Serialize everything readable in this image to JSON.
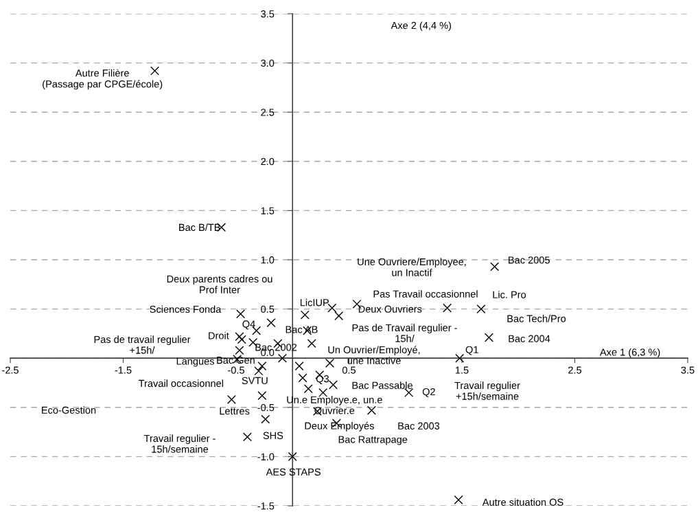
{
  "chart_data": {
    "type": "scatter",
    "xlabel": "Axe 1 (6,3 %)",
    "ylabel": "Axe 2 (4,4 %)",
    "xlim": [
      -2.5,
      3.5
    ],
    "ylim": [
      -1.5,
      3.5
    ],
    "xticks": [
      -2.5,
      -1.5,
      -0.5,
      0.5,
      1.5,
      2.5,
      3.5
    ],
    "yticks": [
      {
        "value": -1.5,
        "label": "-1.5"
      },
      {
        "value": -1.0,
        "label": "-1.0"
      },
      {
        "value": -0.5,
        "label": "-0.5"
      },
      {
        "value": 0,
        "label": "0.0"
      },
      {
        "value": 0.5,
        "label": "0.5"
      },
      {
        "value": 1.0,
        "label": "1.0"
      },
      {
        "value": 1.5,
        "label": "1.5"
      },
      {
        "value": 2.0,
        "label": "2.0"
      },
      {
        "value": 2.5,
        "label": "2.5"
      },
      {
        "value": 3.0,
        "label": "3.0"
      },
      {
        "value": 3.5,
        "label": "3.5"
      }
    ],
    "grid": "y",
    "marker": "cross",
    "series": [
      {
        "color": "#000000",
        "x": [
          -1.22,
          -0.63,
          1.79,
          1.67,
          1.37,
          1.74,
          1.48,
          1.03,
          0.7,
          0.57,
          0.41,
          0.35,
          0.11,
          0.13,
          0.17,
          -0.13,
          -0.09,
          0.06,
          0.33,
          0.09,
          0.24,
          0.36,
          0.14,
          0.27,
          0.22,
          0.39,
          0.0,
          -0.46,
          -0.19,
          -0.32,
          -0.47,
          -0.45,
          -0.35,
          -0.47,
          -0.49,
          -0.27,
          -0.3,
          -0.54,
          -0.27,
          -0.24,
          -0.4,
          1.47
        ],
        "values": [
          2.92,
          1.33,
          0.93,
          0.5,
          0.51,
          0.21,
          0.0,
          -0.35,
          -0.53,
          0.55,
          0.43,
          0.51,
          0.44,
          0.28,
          0.15,
          0.15,
          0.0,
          -0.08,
          -0.05,
          -0.2,
          -0.17,
          -0.27,
          -0.31,
          -0.35,
          -0.54,
          -0.66,
          -1.0,
          0.45,
          0.36,
          0.28,
          0.22,
          0.19,
          0.16,
          0.08,
          -0.01,
          -0.08,
          -0.13,
          -0.42,
          -0.38,
          -0.62,
          -0.8,
          -1.44
        ]
      }
    ],
    "annotations": [
      {
        "text": "Autre Filière\n(Passage par CPGE/école)",
        "x": -1.22,
        "y": 2.92
      },
      {
        "text": "Bac B/TB",
        "x": -0.63,
        "y": 1.33
      },
      "Une Ouvriere/Employee,\nun Inactif",
      {
        "text": "Bac 2005",
        "x": 1.79,
        "y": 0.93
      },
      "Deux parents cadres ou\nProf Inter",
      "Pas Travail occasionnel",
      "Lic. Pro",
      {
        "text": "Sciences Fonda",
        "x": -0.46,
        "y": 0.45
      },
      {
        "text": "LicIUP",
        "x": 0.11,
        "y": 0.44
      },
      {
        "text": "Deux Ouvriers",
        "x": 1.37,
        "y": 0.51
      },
      {
        "text": "Bac Tech/Pro",
        "x": 1.67,
        "y": 0.5
      },
      {
        "text": "Q4",
        "x": -0.32,
        "y": 0.28
      },
      {
        "text": "Bac AB",
        "x": -0.19,
        "y": 0.36
      },
      {
        "text": "Pas de Travail regulier -\n15h/",
        "x": 0.41,
        "y": 0.43
      },
      {
        "text": "Droit",
        "x": -0.47,
        "y": 0.22
      },
      "Pas de travail regulier\n+15h/",
      "Bac 2004",
      {
        "text": "Bac 2002",
        "x": -0.35,
        "y": 0.16
      },
      "Un Ouvrier/Employé,\nune Inactive",
      {
        "text": "Q1",
        "x": 1.48,
        "y": 0.0
      },
      {
        "text": "Langues",
        "x": -0.49,
        "y": -0.01
      },
      {
        "text": "Bac Gen",
        "x": -0.09,
        "y": 0.0
      },
      {
        "text": "SVTU",
        "x": -0.3,
        "y": -0.13
      },
      {
        "text": "Q3",
        "x": 0.24,
        "y": -0.17
      },
      "Bac Passable",
      "Travail regulier\n+15h/semaine",
      "Eco-Gestion",
      {
        "text": "Travail occasionnel",
        "x": -0.54,
        "y": -0.42
      },
      {
        "text": "Q2",
        "x": 1.03,
        "y": -0.35
      },
      {
        "text": "Un.e Employe.e, un.e\nOuvrier.e",
        "x": 0.27,
        "y": -0.35
      },
      {
        "text": "Lettres",
        "x": -0.54,
        "y": -0.42
      },
      {
        "text": "Deux Employés",
        "x": 0.22,
        "y": -0.54
      },
      "Bac 2003",
      {
        "text": "SHS",
        "x": -0.24,
        "y": -0.62
      },
      {
        "text": "Bac Rattrapage",
        "x": 0.39,
        "y": -0.66
      },
      "Travail regulier -\n15h/semaine",
      {
        "text": "AES STAPS",
        "x": 0.0,
        "y": -1.0
      },
      "Autre situation OS"
    ]
  }
}
